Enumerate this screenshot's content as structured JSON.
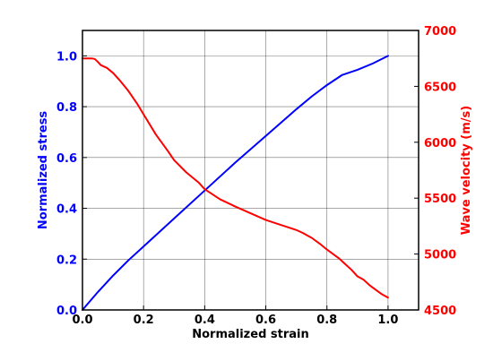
{
  "chart_data": {
    "type": "line",
    "title": "",
    "xlabel": "Normalized strain",
    "ylabel_left": "Normalized stress",
    "ylabel_right": "Wave velocity (m/s)",
    "xlim": [
      0.0,
      1.1
    ],
    "ylim_left": [
      0.0,
      1.1
    ],
    "ylim_right": [
      4500,
      7000
    ],
    "grid": true,
    "legend": "none",
    "x_ticks": [
      "0.0",
      "0.2",
      "0.4",
      "0.6",
      "0.8",
      "1.0"
    ],
    "y_left_ticks": [
      "0.0",
      "0.2",
      "0.4",
      "0.6",
      "0.8",
      "1.0"
    ],
    "y_right_ticks": [
      "4500",
      "5000",
      "5500",
      "6000",
      "6500",
      "7000"
    ],
    "colors": {
      "stress": "#0000ff",
      "velocity": "#ff0000",
      "grid": "#000000"
    },
    "series": [
      {
        "axis": "left",
        "color": "#0000ff",
        "x": [
          0.0,
          0.05,
          0.1,
          0.15,
          0.2,
          0.3,
          0.4,
          0.5,
          0.6,
          0.7,
          0.75,
          0.8,
          0.85,
          0.9,
          0.95,
          1.0
        ],
        "values": [
          0.0,
          0.07,
          0.135,
          0.195,
          0.25,
          0.36,
          0.47,
          0.58,
          0.685,
          0.79,
          0.84,
          0.885,
          0.925,
          0.945,
          0.97,
          1.0
        ]
      },
      {
        "axis": "right",
        "color": "#ff0000",
        "x": [
          0.0,
          0.03,
          0.04,
          0.05,
          0.06,
          0.08,
          0.1,
          0.12,
          0.15,
          0.18,
          0.2,
          0.24,
          0.28,
          0.3,
          0.34,
          0.38,
          0.4,
          0.45,
          0.5,
          0.55,
          0.6,
          0.65,
          0.7,
          0.72,
          0.75,
          0.78,
          0.8,
          0.84,
          0.86,
          0.88,
          0.9,
          0.92,
          0.94,
          0.96,
          0.98,
          1.0
        ],
        "values": [
          6750,
          6750,
          6745,
          6720,
          6690,
          6665,
          6620,
          6560,
          6460,
          6340,
          6250,
          6070,
          5920,
          5840,
          5730,
          5640,
          5580,
          5490,
          5425,
          5365,
          5305,
          5260,
          5215,
          5190,
          5145,
          5085,
          5040,
          4960,
          4910,
          4860,
          4800,
          4770,
          4720,
          4680,
          4640,
          4610
        ]
      }
    ]
  }
}
